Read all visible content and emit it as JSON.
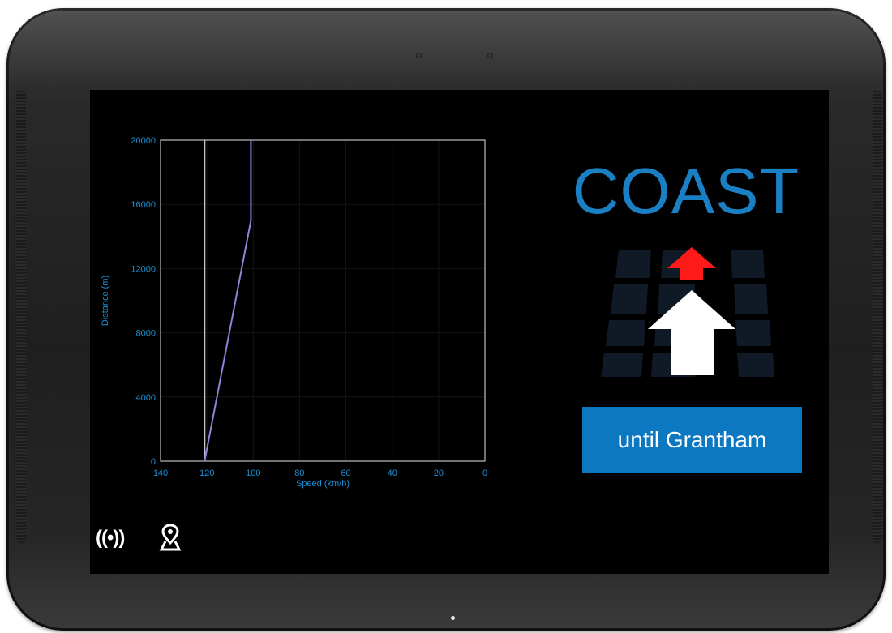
{
  "advice": {
    "action": "COAST",
    "until_label": "until Grantham"
  },
  "icons": {
    "signal": "radio-signal-icon",
    "signal_glyph": "((•))",
    "map": "map-pin-icon",
    "advice_graphic": "track-arrow-icon"
  },
  "colors": {
    "screen_bg": "#000000",
    "accent_blue": "#1b7fc4",
    "button_blue": "#0c78c2",
    "axis_text": "#1a8fd6",
    "target_line": "#c8c8c8",
    "profile_line": "#8a86d8",
    "arrow_red": "#ff1a1a",
    "arrow_white": "#ffffff"
  },
  "chart_data": {
    "type": "line",
    "xlabel": "Speed (km/h)",
    "ylabel": "Distance (m)",
    "xlim": [
      140,
      0
    ],
    "ylim": [
      0,
      20000
    ],
    "x_ticks": [
      140,
      120,
      100,
      80,
      60,
      40,
      20,
      0
    ],
    "y_ticks": [
      0,
      4000,
      8000,
      12000,
      16000,
      20000
    ],
    "grid": true,
    "series": [
      {
        "points": [
          [
            121,
            0
          ],
          [
            121,
            20000
          ]
        ]
      },
      {
        "points": [
          [
            121,
            0
          ],
          [
            101,
            15000
          ],
          [
            101,
            20000
          ]
        ]
      }
    ]
  }
}
